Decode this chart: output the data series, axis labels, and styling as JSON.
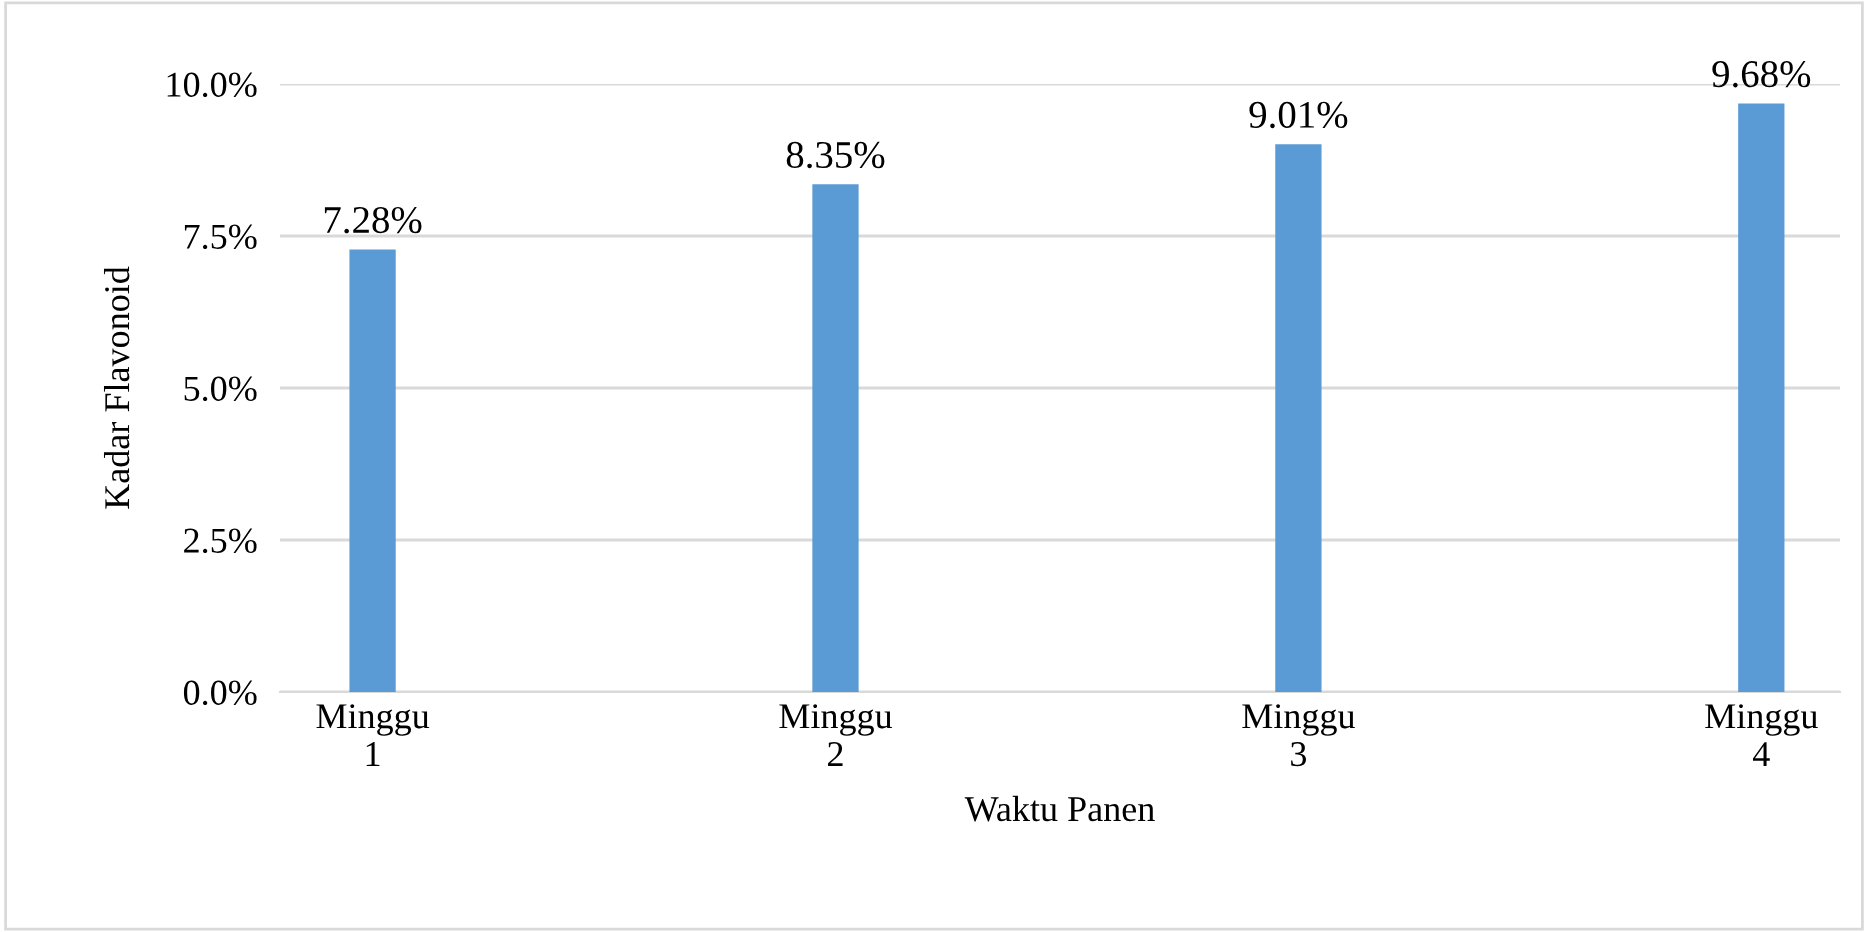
{
  "chart_data": {
    "type": "bar",
    "xlabel": "Waktu Panen",
    "ylabel": "Kadar Flavonoid",
    "categories": [
      "Minggu\n1",
      "Minggu\n2",
      "Minggu\n3",
      "Minggu\n4"
    ],
    "values": [
      7.28,
      8.35,
      9.01,
      9.68
    ],
    "color": "#5b9bd5",
    "value_labels": [
      "7.28%",
      "8.35%",
      "9.01%",
      "9.68%"
    ],
    "ylim": [
      0,
      10
    ],
    "yticks": [
      {
        "value": 0,
        "label": "0.0%"
      },
      {
        "value": 2.5,
        "label": "2.5%"
      },
      {
        "value": 5,
        "label": "5.0%"
      },
      {
        "value": 7.5,
        "label": "7.5%"
      },
      {
        "value": 10,
        "label": "10.0%"
      }
    ],
    "grid": "y",
    "legend": false
  }
}
